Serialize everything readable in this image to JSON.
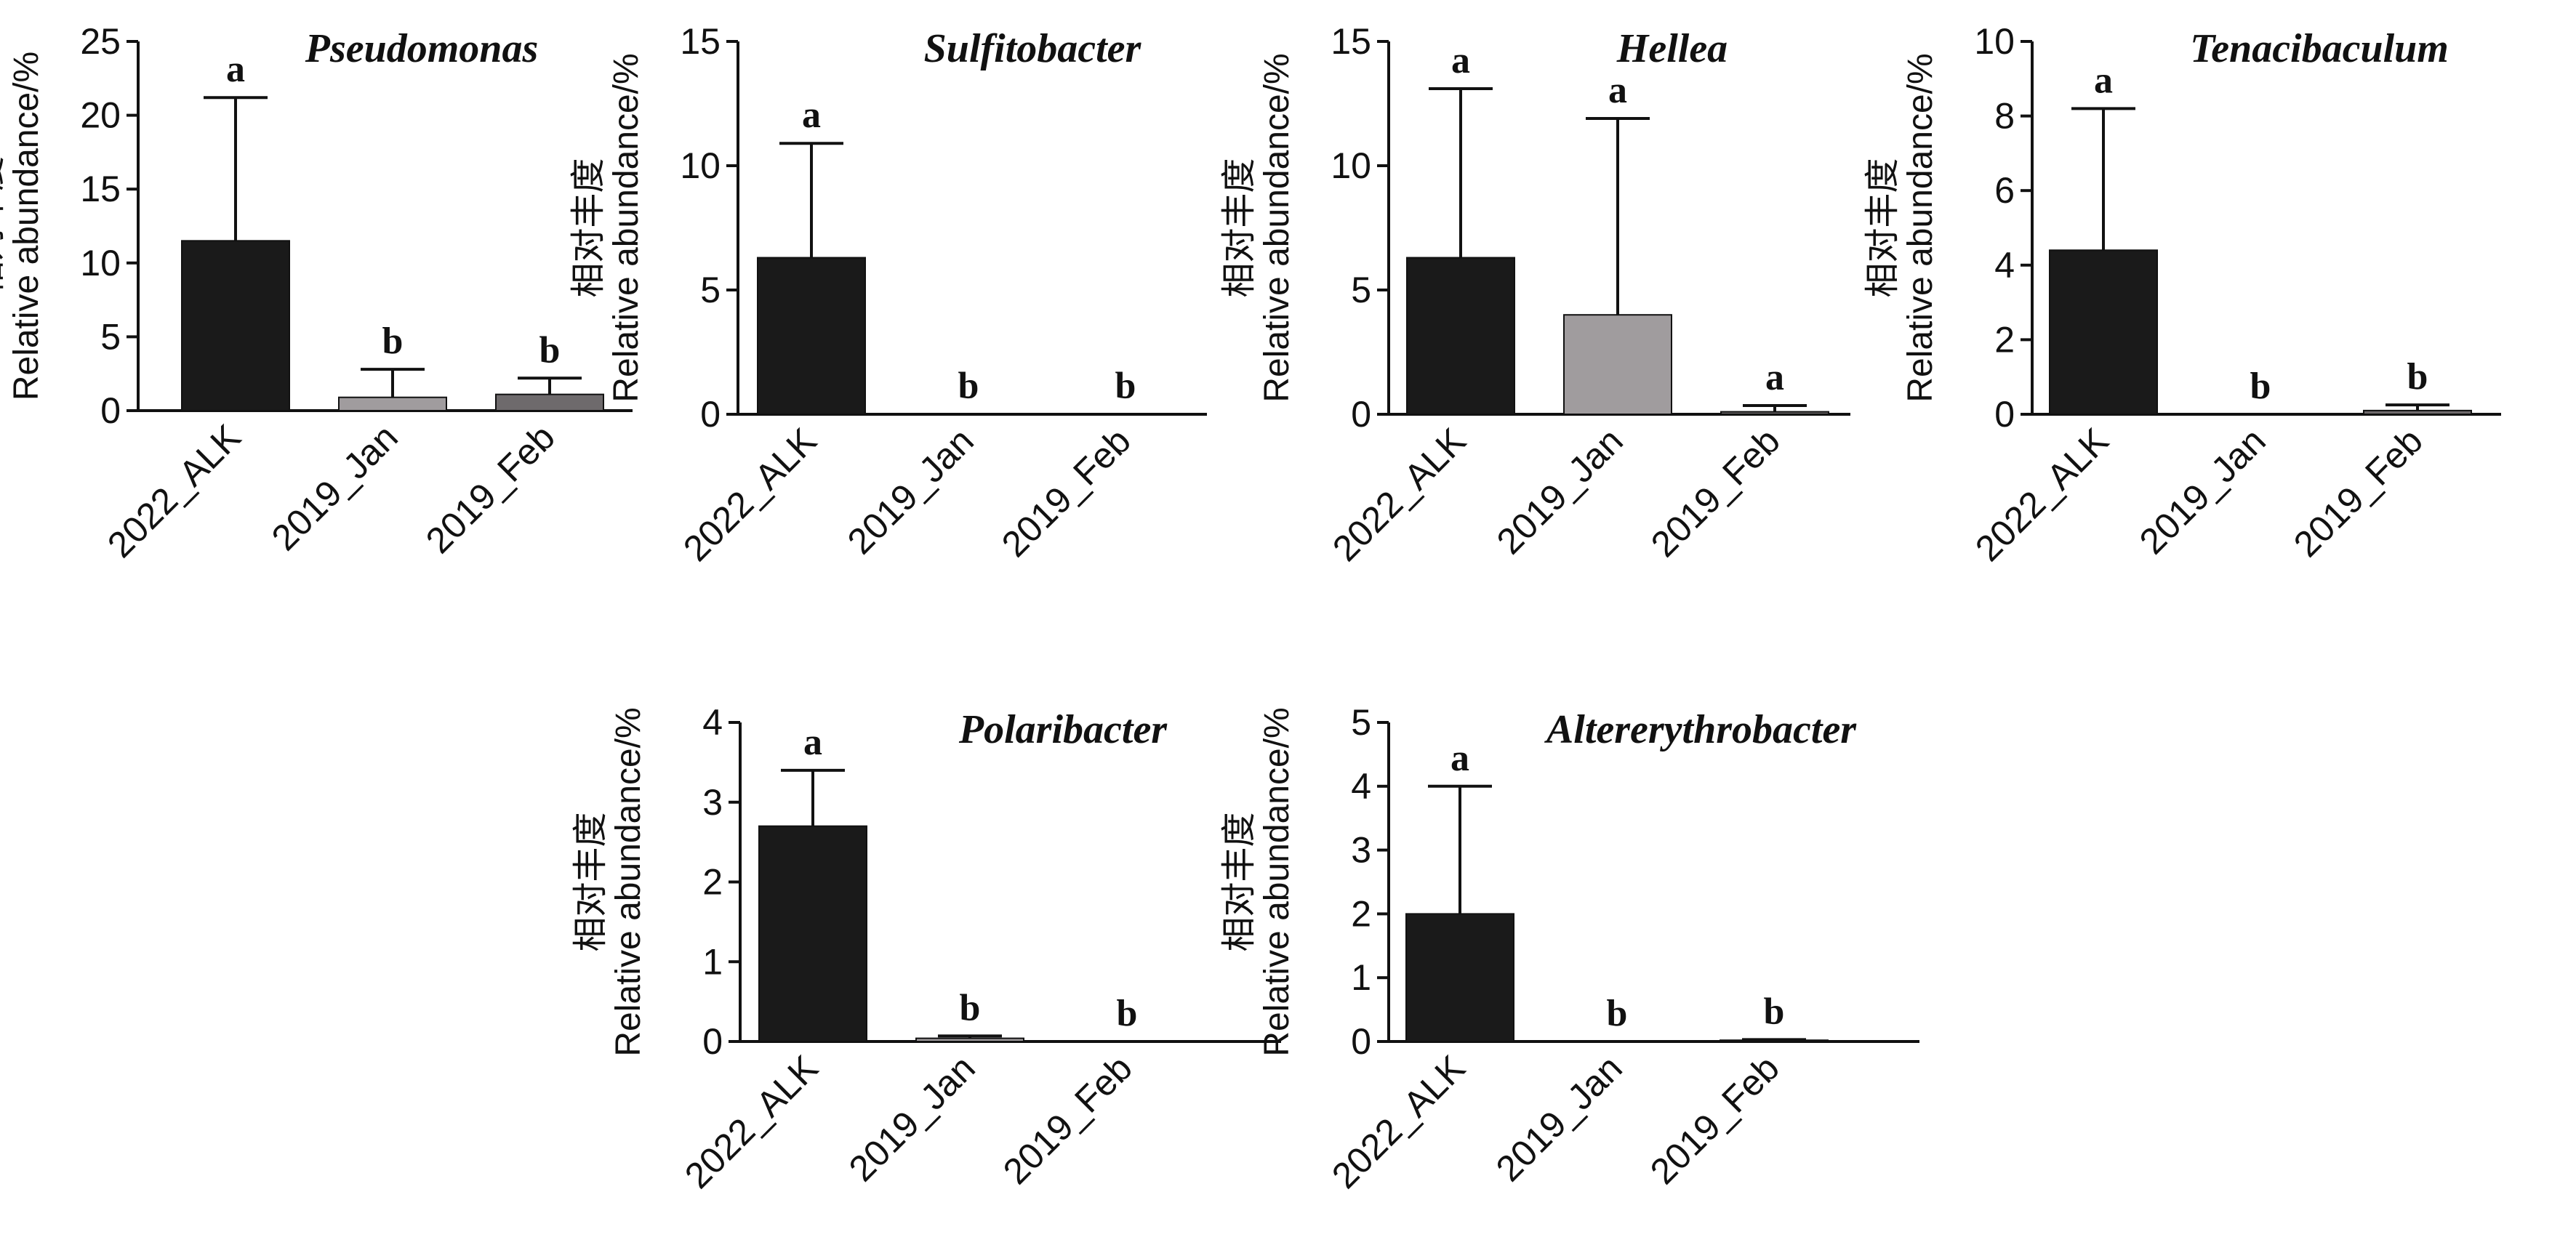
{
  "ylabel_cn": "相对丰度",
  "ylabel_en": "Relative abundance/%",
  "categories": [
    "2022_ALK",
    "2019_Jan",
    "2019_Feb"
  ],
  "colors": {
    "2022_ALK": "#1a1a1a",
    "2019_Jan": "#a09c9e",
    "2019_Feb": "#6e6a6c",
    "axis": "#111111"
  },
  "chart_data": [
    {
      "type": "bar",
      "title": "Pseudomonas",
      "categories": [
        "2022_ALK",
        "2019_Jan",
        "2019_Feb"
      ],
      "values": [
        11.5,
        0.9,
        1.1
      ],
      "error_upper": [
        21.2,
        2.8,
        2.2
      ],
      "significance": [
        "a",
        "b",
        "b"
      ],
      "ylim": [
        0,
        25
      ],
      "yticks": [
        0,
        5,
        10,
        15,
        20,
        25
      ],
      "ylabel": "Relative abundance/%"
    },
    {
      "type": "bar",
      "title": "Sulfitobacter",
      "categories": [
        "2022_ALK",
        "2019_Jan",
        "2019_Feb"
      ],
      "values": [
        6.3,
        0.02,
        0.02
      ],
      "error_upper": [
        10.9,
        0.02,
        0.02
      ],
      "significance": [
        "a",
        "b",
        "b"
      ],
      "ylim": [
        0,
        15
      ],
      "yticks": [
        0,
        5,
        10,
        15
      ],
      "ylabel": "Relative abundance/%"
    },
    {
      "type": "bar",
      "title": "Hellea",
      "categories": [
        "2022_ALK",
        "2019_Jan",
        "2019_Feb"
      ],
      "values": [
        6.3,
        4.0,
        0.1
      ],
      "error_upper": [
        13.1,
        11.9,
        0.35
      ],
      "significance": [
        "a",
        "a",
        "a"
      ],
      "ylim": [
        0,
        15
      ],
      "yticks": [
        0,
        5,
        10,
        15
      ],
      "ylabel": "Relative abundance/%"
    },
    {
      "type": "bar",
      "title": "Tenacibaculum",
      "categories": [
        "2022_ALK",
        "2019_Jan",
        "2019_Feb"
      ],
      "values": [
        4.4,
        0.0,
        0.1
      ],
      "error_upper": [
        8.2,
        0.0,
        0.25
      ],
      "significance": [
        "a",
        "b",
        "b"
      ],
      "ylim": [
        0,
        10
      ],
      "yticks": [
        0,
        2,
        4,
        6,
        8,
        10
      ],
      "ylabel": "Relative abundance/%"
    },
    {
      "type": "bar",
      "title": "Polaribacter",
      "categories": [
        "2022_ALK",
        "2019_Jan",
        "2019_Feb"
      ],
      "values": [
        2.7,
        0.04,
        0.0
      ],
      "error_upper": [
        3.4,
        0.07,
        0.0
      ],
      "significance": [
        "a",
        "b",
        "b"
      ],
      "ylim": [
        0,
        4
      ],
      "yticks": [
        0,
        1,
        2,
        3,
        4
      ],
      "ylabel": "Relative abundance/%"
    },
    {
      "type": "bar",
      "title": "Altererythrobacter",
      "categories": [
        "2022_ALK",
        "2019_Jan",
        "2019_Feb"
      ],
      "values": [
        2.0,
        0.0,
        0.02
      ],
      "error_upper": [
        4.0,
        0.0,
        0.03
      ],
      "significance": [
        "a",
        "b",
        "b"
      ],
      "ylim": [
        0,
        5
      ],
      "yticks": [
        0,
        1,
        2,
        3,
        4,
        5
      ],
      "ylabel": "Relative abundance/%"
    }
  ]
}
